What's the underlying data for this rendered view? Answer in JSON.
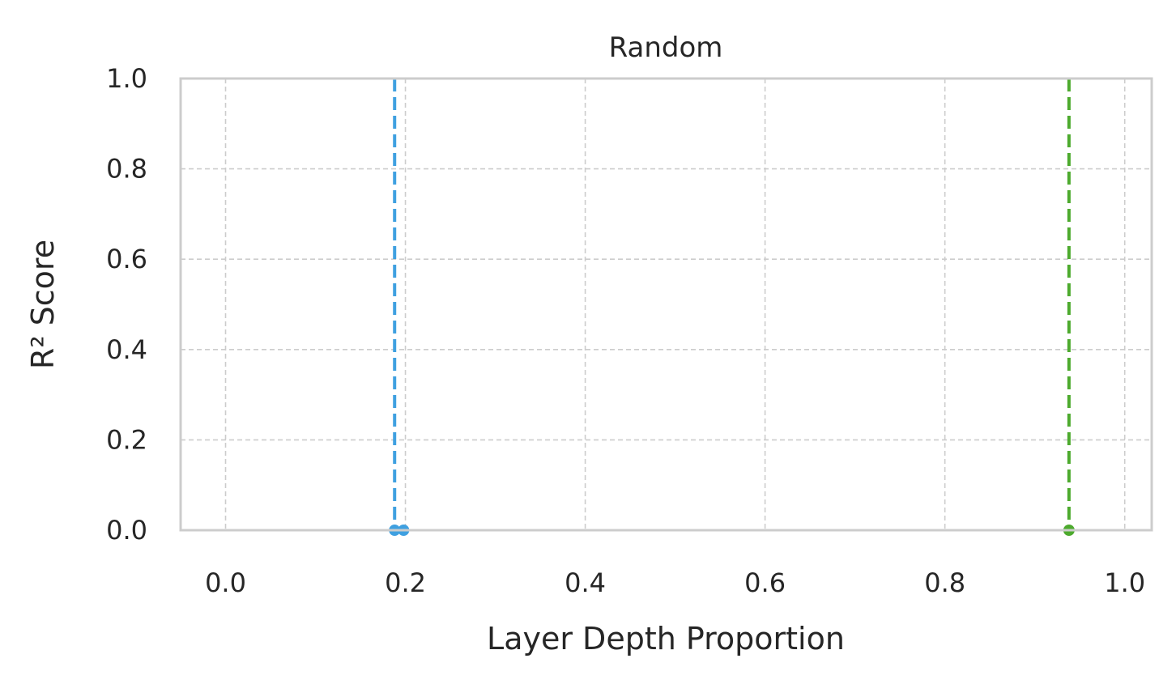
{
  "chart_data": {
    "type": "line",
    "title": "Random",
    "xlabel": "Layer Depth Proportion",
    "ylabel": "R² Score",
    "xlim": [
      -0.05,
      1.03
    ],
    "ylim": [
      0.0,
      1.0
    ],
    "x_ticks": [
      0.0,
      0.2,
      0.4,
      0.6,
      0.8,
      1.0
    ],
    "x_tick_labels": [
      "0.0",
      "0.2",
      "0.4",
      "0.6",
      "0.8",
      "1.0"
    ],
    "y_ticks": [
      0.0,
      0.2,
      0.4,
      0.6,
      0.8,
      1.0
    ],
    "y_tick_labels": [
      "0.0",
      "0.2",
      "0.4",
      "0.6",
      "0.8",
      "1.0"
    ],
    "grid": true,
    "series": [
      {
        "color": "#3fa0e0",
        "points": [
          {
            "x": 0.188,
            "y": 0.0
          },
          {
            "x": 0.198,
            "y": 0.0
          }
        ]
      },
      {
        "color": "#4daa2e",
        "points": [
          {
            "x": 0.938,
            "y": 0.0
          }
        ]
      }
    ],
    "vlines": [
      {
        "x": 0.188,
        "color": "#3fa0e0",
        "style": "dashed"
      },
      {
        "x": 0.938,
        "color": "#4daa2e",
        "style": "dashed"
      }
    ]
  }
}
